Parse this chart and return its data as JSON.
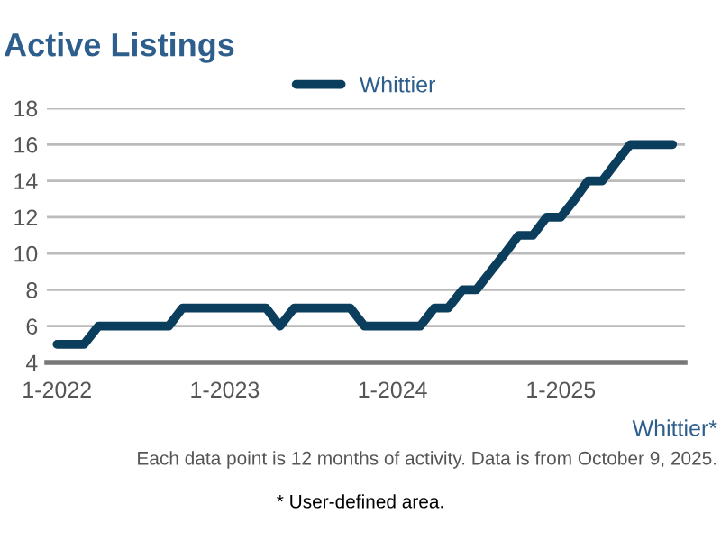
{
  "chart_data": {
    "type": "line",
    "title": "Active Listings",
    "x": [
      "2022-01",
      "2022-02",
      "2022-03",
      "2022-04",
      "2022-05",
      "2022-06",
      "2022-07",
      "2022-08",
      "2022-09",
      "2022-10",
      "2022-11",
      "2022-12",
      "2023-01",
      "2023-02",
      "2023-03",
      "2023-04",
      "2023-05",
      "2023-06",
      "2023-07",
      "2023-08",
      "2023-09",
      "2023-10",
      "2023-11",
      "2023-12",
      "2024-01",
      "2024-02",
      "2024-03",
      "2024-04",
      "2024-05",
      "2024-06",
      "2024-07",
      "2024-08",
      "2024-09",
      "2024-10",
      "2024-11",
      "2024-12",
      "2025-01",
      "2025-02",
      "2025-03",
      "2025-04",
      "2025-05",
      "2025-06",
      "2025-07",
      "2025-08",
      "2025-09"
    ],
    "series": [
      {
        "name": "Whittier",
        "color": "#0b3d5c",
        "values": [
          5,
          5,
          5,
          6,
          6,
          6,
          6,
          6,
          6,
          7,
          7,
          7,
          7,
          7,
          7,
          7,
          6,
          7,
          7,
          7,
          7,
          7,
          6,
          6,
          6,
          6,
          6,
          7,
          7,
          8,
          8,
          9,
          10,
          11,
          11,
          12,
          12,
          13,
          14,
          14,
          15,
          16,
          16,
          16,
          16
        ]
      }
    ],
    "xlim": [
      "2021-12-10",
      "2025-09-28"
    ],
    "xticks": [
      {
        "value": "2022-01",
        "label": "1-2022"
      },
      {
        "value": "2023-01",
        "label": "1-2023"
      },
      {
        "value": "2024-01",
        "label": "1-2024"
      },
      {
        "value": "2025-01",
        "label": "1-2025"
      }
    ],
    "ylim": [
      4,
      18
    ],
    "yticks": [
      4,
      6,
      8,
      10,
      12,
      14,
      16,
      18
    ],
    "grid": "y",
    "legend": "top",
    "marker": "none",
    "line_style": "solid",
    "annotations": [
      "Whittier*",
      "Each data point is 12 months of activity. Data is from October 9, 2025.",
      "* User-defined area."
    ]
  }
}
